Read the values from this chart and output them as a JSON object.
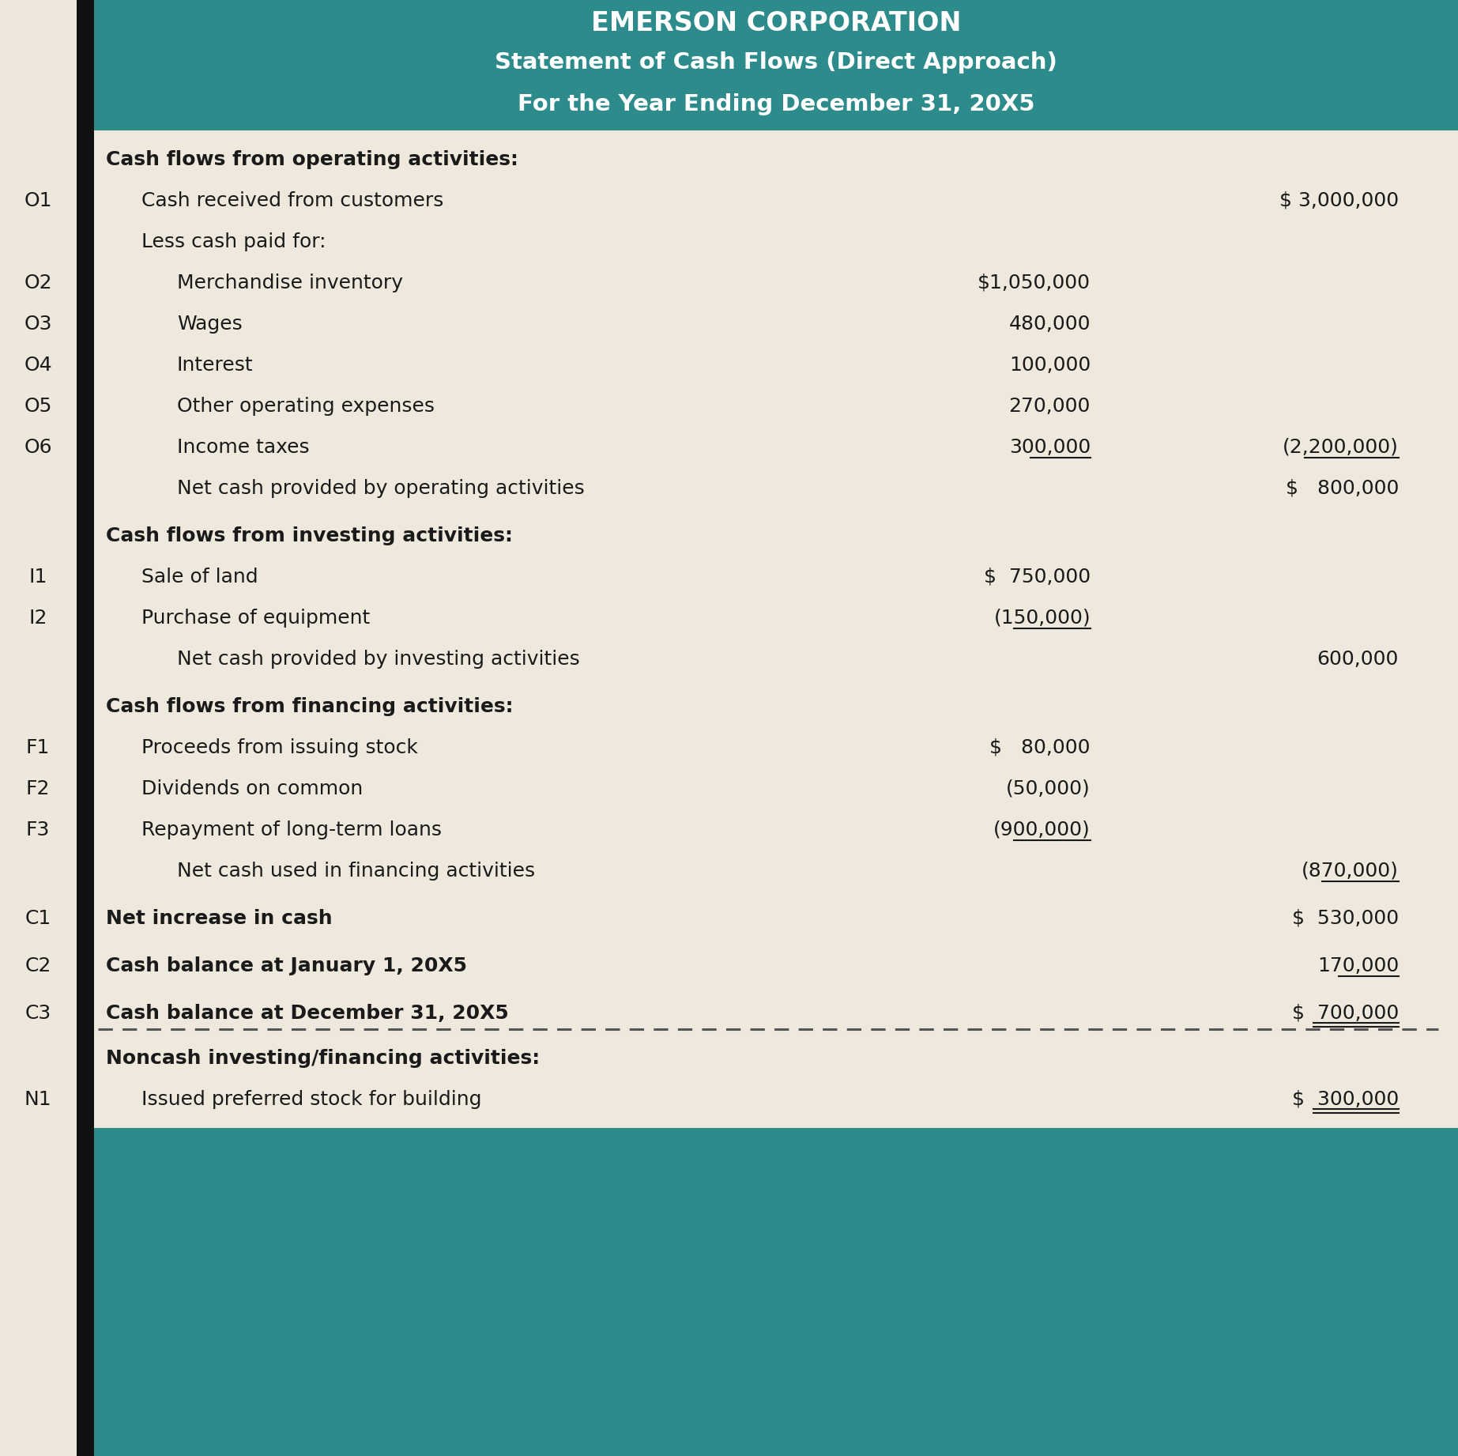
{
  "title_line1": "EMERSON CORPORATION",
  "title_line2": "Statement of Cash Flows (Direct Approach)",
  "title_line3": "For the Year Ending December 31, 20X5",
  "header_bg": "#2E8B8B",
  "header_text_color": "#FFFFFF",
  "body_bg": "#EEE9DC",
  "body_text_color": "#1a1a1a",
  "left_col_bg": "#EDE8DB",
  "black_bar_color": "#111111",
  "rows": [
    {
      "label": "Cash flows from operating activities:",
      "indent": 0,
      "col1": "",
      "col2": "",
      "bold": true,
      "label_id": "",
      "ul1": false,
      "ul2": false,
      "ul_label": false,
      "spacer": false
    },
    {
      "label": "Cash received from customers",
      "indent": 1,
      "col1": "",
      "col2": "$ 3,000,000",
      "bold": false,
      "label_id": "O1",
      "ul1": false,
      "ul2": false,
      "ul_label": false,
      "spacer": false
    },
    {
      "label": "Less cash paid for:",
      "indent": 1,
      "col1": "",
      "col2": "",
      "bold": false,
      "label_id": "",
      "ul1": false,
      "ul2": false,
      "ul_label": false,
      "spacer": false
    },
    {
      "label": "Merchandise inventory",
      "indent": 2,
      "col1": "$1,050,000",
      "col2": "",
      "bold": false,
      "label_id": "O2",
      "ul1": false,
      "ul2": false,
      "ul_label": false,
      "spacer": false
    },
    {
      "label": "Wages",
      "indent": 2,
      "col1": "480,000",
      "col2": "",
      "bold": false,
      "label_id": "O3",
      "ul1": false,
      "ul2": false,
      "ul_label": false,
      "spacer": false
    },
    {
      "label": "Interest",
      "indent": 2,
      "col1": "100,000",
      "col2": "",
      "bold": false,
      "label_id": "O4",
      "ul1": false,
      "ul2": false,
      "ul_label": false,
      "spacer": false
    },
    {
      "label": "Other operating expenses",
      "indent": 2,
      "col1": "270,000",
      "col2": "",
      "bold": false,
      "label_id": "O5",
      "ul1": false,
      "ul2": false,
      "ul_label": false,
      "spacer": false
    },
    {
      "label": "Income taxes",
      "indent": 2,
      "col1": "300,000",
      "col2": "(2,200,000)",
      "bold": false,
      "label_id": "O6",
      "ul1": true,
      "ul2": true,
      "ul_label": false,
      "spacer": false
    },
    {
      "label": "Net cash provided by operating activities",
      "indent": 2,
      "col1": "",
      "col2": "$   800,000",
      "bold": false,
      "label_id": "",
      "ul1": false,
      "ul2": false,
      "ul_label": false,
      "spacer": false
    },
    {
      "label": "",
      "indent": 0,
      "col1": "",
      "col2": "",
      "bold": false,
      "label_id": "",
      "ul1": false,
      "ul2": false,
      "ul_label": false,
      "spacer": true
    },
    {
      "label": "Cash flows from investing activities:",
      "indent": 0,
      "col1": "",
      "col2": "",
      "bold": true,
      "label_id": "",
      "ul1": false,
      "ul2": false,
      "ul_label": false,
      "spacer": false
    },
    {
      "label": "Sale of land",
      "indent": 1,
      "col1": "$  750,000",
      "col2": "",
      "bold": false,
      "label_id": "I1",
      "ul1": false,
      "ul2": false,
      "ul_label": false,
      "spacer": false
    },
    {
      "label": "Purchase of equipment",
      "indent": 1,
      "col1": "(150,000)",
      "col2": "",
      "bold": false,
      "label_id": "I2",
      "ul1": true,
      "ul2": false,
      "ul_label": false,
      "spacer": false
    },
    {
      "label": "Net cash provided by investing activities",
      "indent": 2,
      "col1": "",
      "col2": "600,000",
      "bold": false,
      "label_id": "",
      "ul1": false,
      "ul2": false,
      "ul_label": false,
      "spacer": false
    },
    {
      "label": "",
      "indent": 0,
      "col1": "",
      "col2": "",
      "bold": false,
      "label_id": "",
      "ul1": false,
      "ul2": false,
      "ul_label": false,
      "spacer": true
    },
    {
      "label": "Cash flows from financing activities:",
      "indent": 0,
      "col1": "",
      "col2": "",
      "bold": true,
      "label_id": "",
      "ul1": false,
      "ul2": false,
      "ul_label": false,
      "spacer": false
    },
    {
      "label": "Proceeds from issuing stock",
      "indent": 1,
      "col1": "$   80,000",
      "col2": "",
      "bold": false,
      "label_id": "F1",
      "ul1": false,
      "ul2": false,
      "ul_label": false,
      "spacer": false
    },
    {
      "label": "Dividends on common",
      "indent": 1,
      "col1": "(50,000)",
      "col2": "",
      "bold": false,
      "label_id": "F2",
      "ul1": false,
      "ul2": false,
      "ul_label": false,
      "spacer": false
    },
    {
      "label": "Repayment of long-term loans",
      "indent": 1,
      "col1": "(900,000)",
      "col2": "",
      "bold": false,
      "label_id": "F3",
      "ul1": true,
      "ul2": false,
      "ul_label": false,
      "spacer": false
    },
    {
      "label": "Net cash used in financing activities",
      "indent": 2,
      "col1": "",
      "col2": "(870,000)",
      "bold": false,
      "label_id": "",
      "ul1": false,
      "ul2": true,
      "ul_label": false,
      "spacer": false
    },
    {
      "label": "",
      "indent": 0,
      "col1": "",
      "col2": "",
      "bold": false,
      "label_id": "",
      "ul1": false,
      "ul2": false,
      "ul_label": false,
      "spacer": true
    },
    {
      "label": "Net increase in cash",
      "indent": 0,
      "col1": "",
      "col2": "$  530,000",
      "bold": true,
      "label_id": "C1",
      "ul1": false,
      "ul2": false,
      "ul_label": false,
      "spacer": false
    },
    {
      "label": "",
      "indent": 0,
      "col1": "",
      "col2": "",
      "bold": false,
      "label_id": "",
      "ul1": false,
      "ul2": false,
      "ul_label": false,
      "spacer": true
    },
    {
      "label": "Cash balance at January 1, 20X5",
      "indent": 0,
      "col1": "",
      "col2": "170,000",
      "bold": true,
      "label_id": "C2",
      "ul1": false,
      "ul2": true,
      "ul_label": false,
      "spacer": false
    },
    {
      "label": "",
      "indent": 0,
      "col1": "",
      "col2": "",
      "bold": false,
      "label_id": "",
      "ul1": false,
      "ul2": false,
      "ul_label": false,
      "spacer": true
    },
    {
      "label": "Cash balance at December 31, 20X5",
      "indent": 0,
      "col1": "",
      "col2": "$  700,000",
      "bold": true,
      "label_id": "C3",
      "ul1": false,
      "ul2": true,
      "ul_label": false,
      "double_ul2": true,
      "spacer": false
    }
  ],
  "noncash_rows": [
    {
      "label": "Noncash investing/financing activities:",
      "indent": 0,
      "col1": "",
      "col2": "",
      "bold": true,
      "label_id": "",
      "ul1": false,
      "ul2": false,
      "ul_label": false,
      "spacer": false
    },
    {
      "label": "Issued preferred stock for building",
      "indent": 1,
      "col1": "",
      "col2": "$  300,000",
      "bold": false,
      "label_id": "N1",
      "ul1": false,
      "ul2": true,
      "ul_label": false,
      "double_ul2": true,
      "spacer": false
    }
  ]
}
